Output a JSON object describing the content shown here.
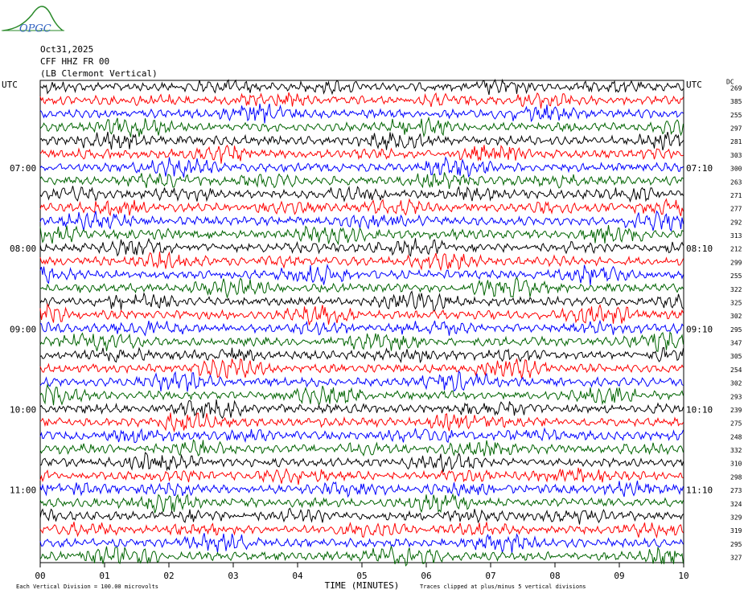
{
  "chart_data": {
    "type": "helicorder",
    "logo": "OPGC",
    "date": "Oct31,2025",
    "station": "CFF HHZ FR 00",
    "location": "(LB  Clermont Vertical)",
    "dc_header": "DC",
    "left_labels": [
      "UTC",
      null,
      null,
      null,
      null,
      null,
      "07:00",
      null,
      null,
      null,
      null,
      null,
      "08:00",
      null,
      null,
      null,
      null,
      null,
      "09:00",
      null,
      null,
      null,
      null,
      null,
      "10:00",
      null,
      null,
      null,
      null,
      null,
      "11:00",
      null,
      null,
      null,
      null,
      null
    ],
    "right_labels": [
      "UTC",
      null,
      null,
      null,
      null,
      null,
      "07:10",
      null,
      null,
      null,
      null,
      null,
      "08:10",
      null,
      null,
      null,
      null,
      null,
      "09:10",
      null,
      null,
      null,
      null,
      null,
      "10:10",
      null,
      null,
      null,
      null,
      null,
      "11:10",
      null,
      null,
      null,
      null,
      null
    ],
    "dc_values": [
      269,
      385,
      255,
      297,
      281,
      303,
      300,
      263,
      271,
      277,
      292,
      313,
      212,
      299,
      255,
      322,
      325,
      302,
      295,
      347,
      305,
      254,
      302,
      293,
      239,
      275,
      248,
      332,
      310,
      298,
      273,
      324,
      329,
      319,
      295,
      327
    ],
    "trace_colors": [
      "#000000",
      "#ff0000",
      "#0000ff",
      "#006400"
    ],
    "xlim": [
      0,
      10
    ],
    "xticks": [
      {
        "value": 0,
        "label": "00"
      },
      {
        "value": 1,
        "label": "01"
      },
      {
        "value": 2,
        "label": "02"
      },
      {
        "value": 3,
        "label": "03"
      },
      {
        "value": 4,
        "label": "04"
      },
      {
        "value": 5,
        "label": "05"
      },
      {
        "value": 6,
        "label": "06"
      },
      {
        "value": 7,
        "label": "07"
      },
      {
        "value": 8,
        "label": "08"
      },
      {
        "value": 9,
        "label": "09"
      },
      {
        "value": 10,
        "label": "10"
      }
    ],
    "xlabel": "TIME (MINUTES)",
    "scale_note": "Each Vertical Division =  100.00 microvolts",
    "clip_note": "Traces clipped at plus/minus 5 vertical divisions"
  }
}
